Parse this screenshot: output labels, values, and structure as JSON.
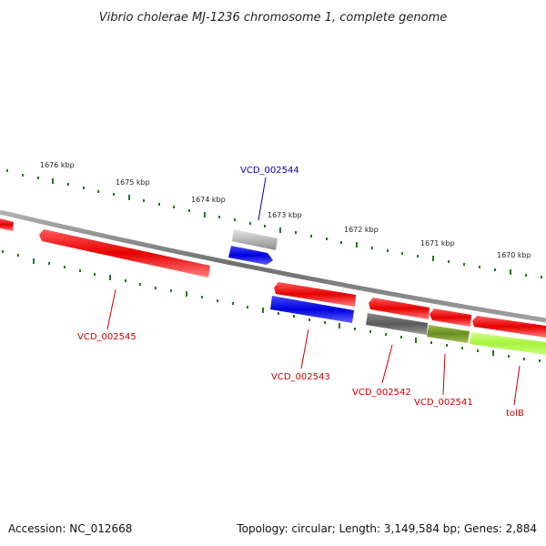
{
  "title": "Vibrio cholerae MJ-1236 chromosome 1, complete genome",
  "footer": {
    "accession": "Accession: NC_012668",
    "summary": "Topology: circular; Length: 3,149,584 bp; Genes: 2,884"
  },
  "colors": {
    "backbone": "#8a8a8a",
    "tick": "#1f7a1f",
    "forward_cds": "#e60000",
    "reverse_cds": "#0000dd",
    "rna": "#b8b8b8",
    "pseudo": "#5a5a5a",
    "olive": "#6b8e23",
    "lime": "#a6f53c",
    "label_red": "#cc0000",
    "label_blue": "#0000aa"
  },
  "scale_labels": [
    "1676 kbp",
    "1675 kbp",
    "1674 kbp",
    "1673 kbp",
    "1672 kbp",
    "1671 kbp",
    "1670 kbp"
  ],
  "gene_labels": {
    "vcd_002545": "VCD_002545",
    "vcd_002544": "VCD_002544",
    "vcd_002543": "VCD_002543",
    "vcd_002542": "VCD_002542",
    "vcd_002541": "VCD_002541",
    "tolb": "tolB"
  }
}
